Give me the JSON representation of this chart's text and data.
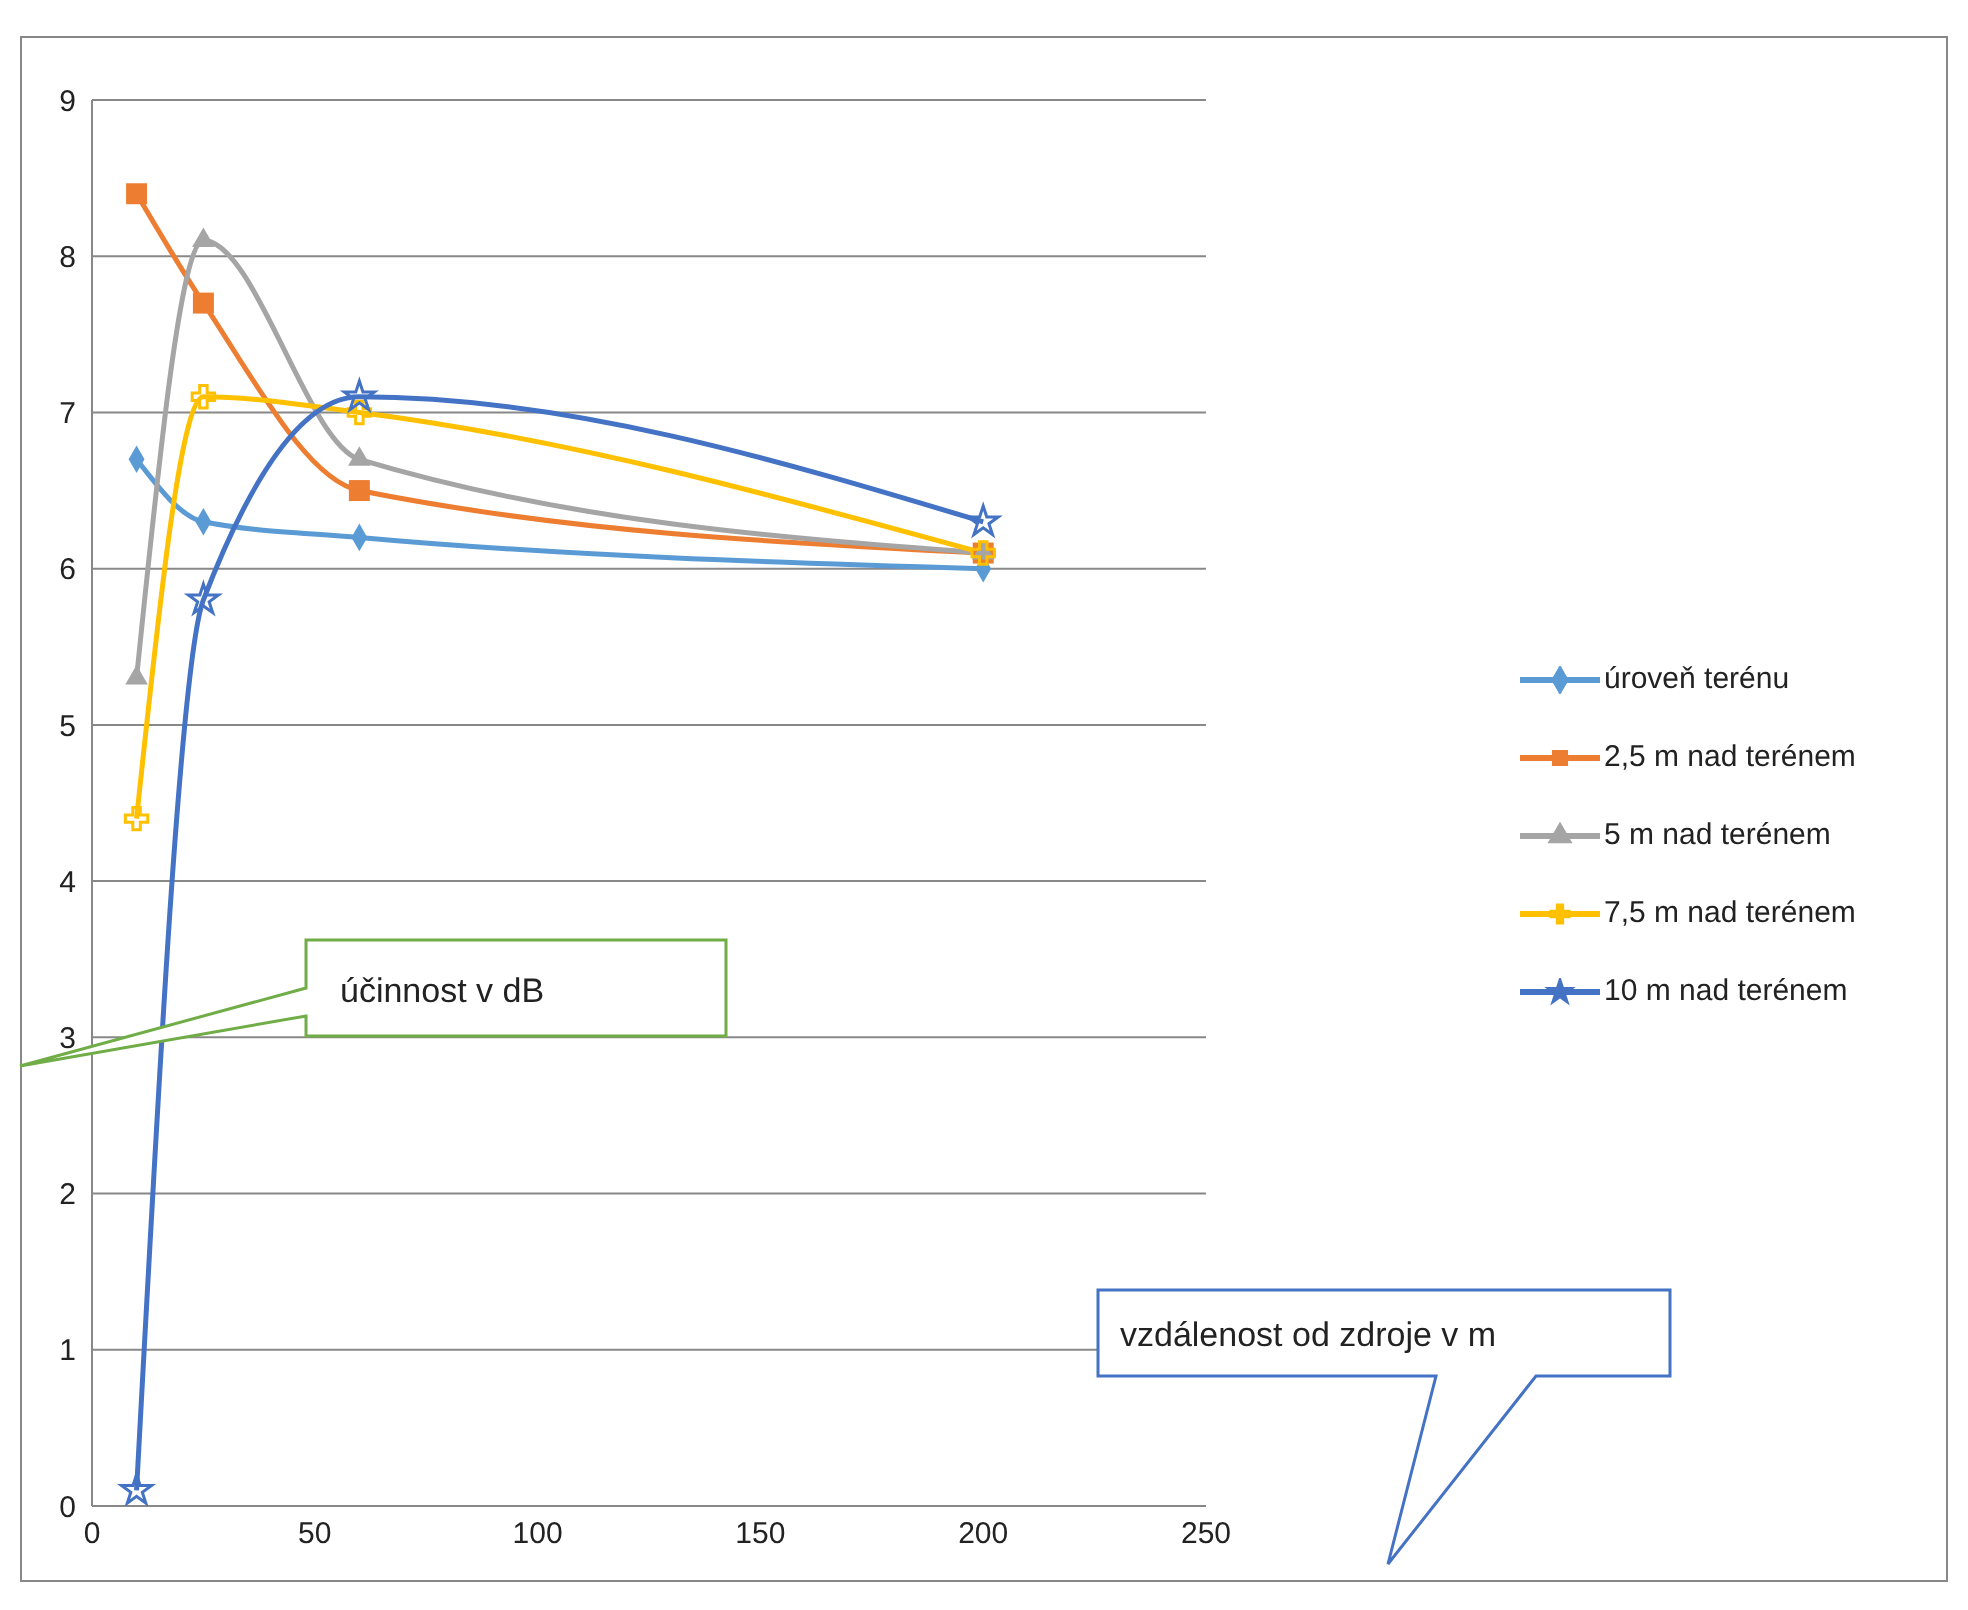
{
  "chart_data": {
    "type": "line",
    "xlabel": "vzdálenost od zdroje v m",
    "ylabel": "účinnost v dB",
    "x": [
      10,
      25,
      60,
      200
    ],
    "series": [
      {
        "name": "úroveň terénu",
        "color": "#5b9bd5",
        "marker": "diamond",
        "values": [
          6.7,
          6.3,
          6.2,
          6.0
        ]
      },
      {
        "name": "2,5 m nad terénem",
        "color": "#ed7d31",
        "marker": "square",
        "values": [
          8.4,
          7.7,
          6.5,
          6.1
        ]
      },
      {
        "name": "5 m nad terénem",
        "color": "#a5a5a5",
        "marker": "triangle",
        "values": [
          5.3,
          8.1,
          6.7,
          6.1
        ]
      },
      {
        "name": "7,5 m nad terénem",
        "color": "#ffc000",
        "marker": "cross",
        "values": [
          4.4,
          7.1,
          7.0,
          6.1
        ]
      },
      {
        "name": "10 m nad terénem",
        "color": "#4472c4",
        "marker": "star",
        "values": [
          0.1,
          5.8,
          7.1,
          6.3
        ]
      }
    ],
    "xlim": [
      0,
      250
    ],
    "xticks": [
      0,
      50,
      100,
      150,
      200,
      250
    ],
    "ylim": [
      0,
      9
    ],
    "yticks": [
      0,
      1,
      2,
      3,
      4,
      5,
      6,
      7,
      8,
      9
    ],
    "grid": "y",
    "legend": "right",
    "line_style": "solid"
  }
}
